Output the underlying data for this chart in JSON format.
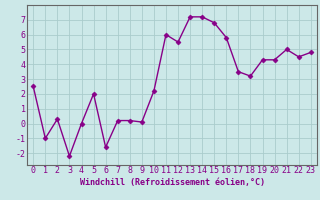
{
  "x": [
    0,
    1,
    2,
    3,
    4,
    5,
    6,
    7,
    8,
    9,
    10,
    11,
    12,
    13,
    14,
    15,
    16,
    17,
    18,
    19,
    20,
    21,
    22,
    23
  ],
  "y": [
    2.5,
    -1.0,
    0.3,
    -2.2,
    0.0,
    2.0,
    -1.6,
    0.2,
    0.2,
    0.1,
    2.2,
    6.0,
    5.5,
    7.2,
    7.2,
    6.8,
    5.8,
    3.5,
    3.2,
    4.3,
    4.3,
    5.0,
    4.5,
    4.8
  ],
  "line_color": "#880088",
  "marker": "D",
  "markersize": 2.5,
  "linewidth": 1.0,
  "background_color": "#cce8e8",
  "grid_color": "#aacccc",
  "xlabel": "Windchill (Refroidissement éolien,°C)",
  "xlabel_fontsize": 6.0,
  "tick_fontsize": 6.0,
  "yticks": [
    -2,
    -1,
    0,
    1,
    2,
    3,
    4,
    5,
    6,
    7
  ],
  "xticks": [
    0,
    1,
    2,
    3,
    4,
    5,
    6,
    7,
    8,
    9,
    10,
    11,
    12,
    13,
    14,
    15,
    16,
    17,
    18,
    19,
    20,
    21,
    22,
    23
  ],
  "ylim": [
    -2.8,
    8.0
  ],
  "xlim": [
    -0.5,
    23.5
  ],
  "spine_color": "#666666"
}
